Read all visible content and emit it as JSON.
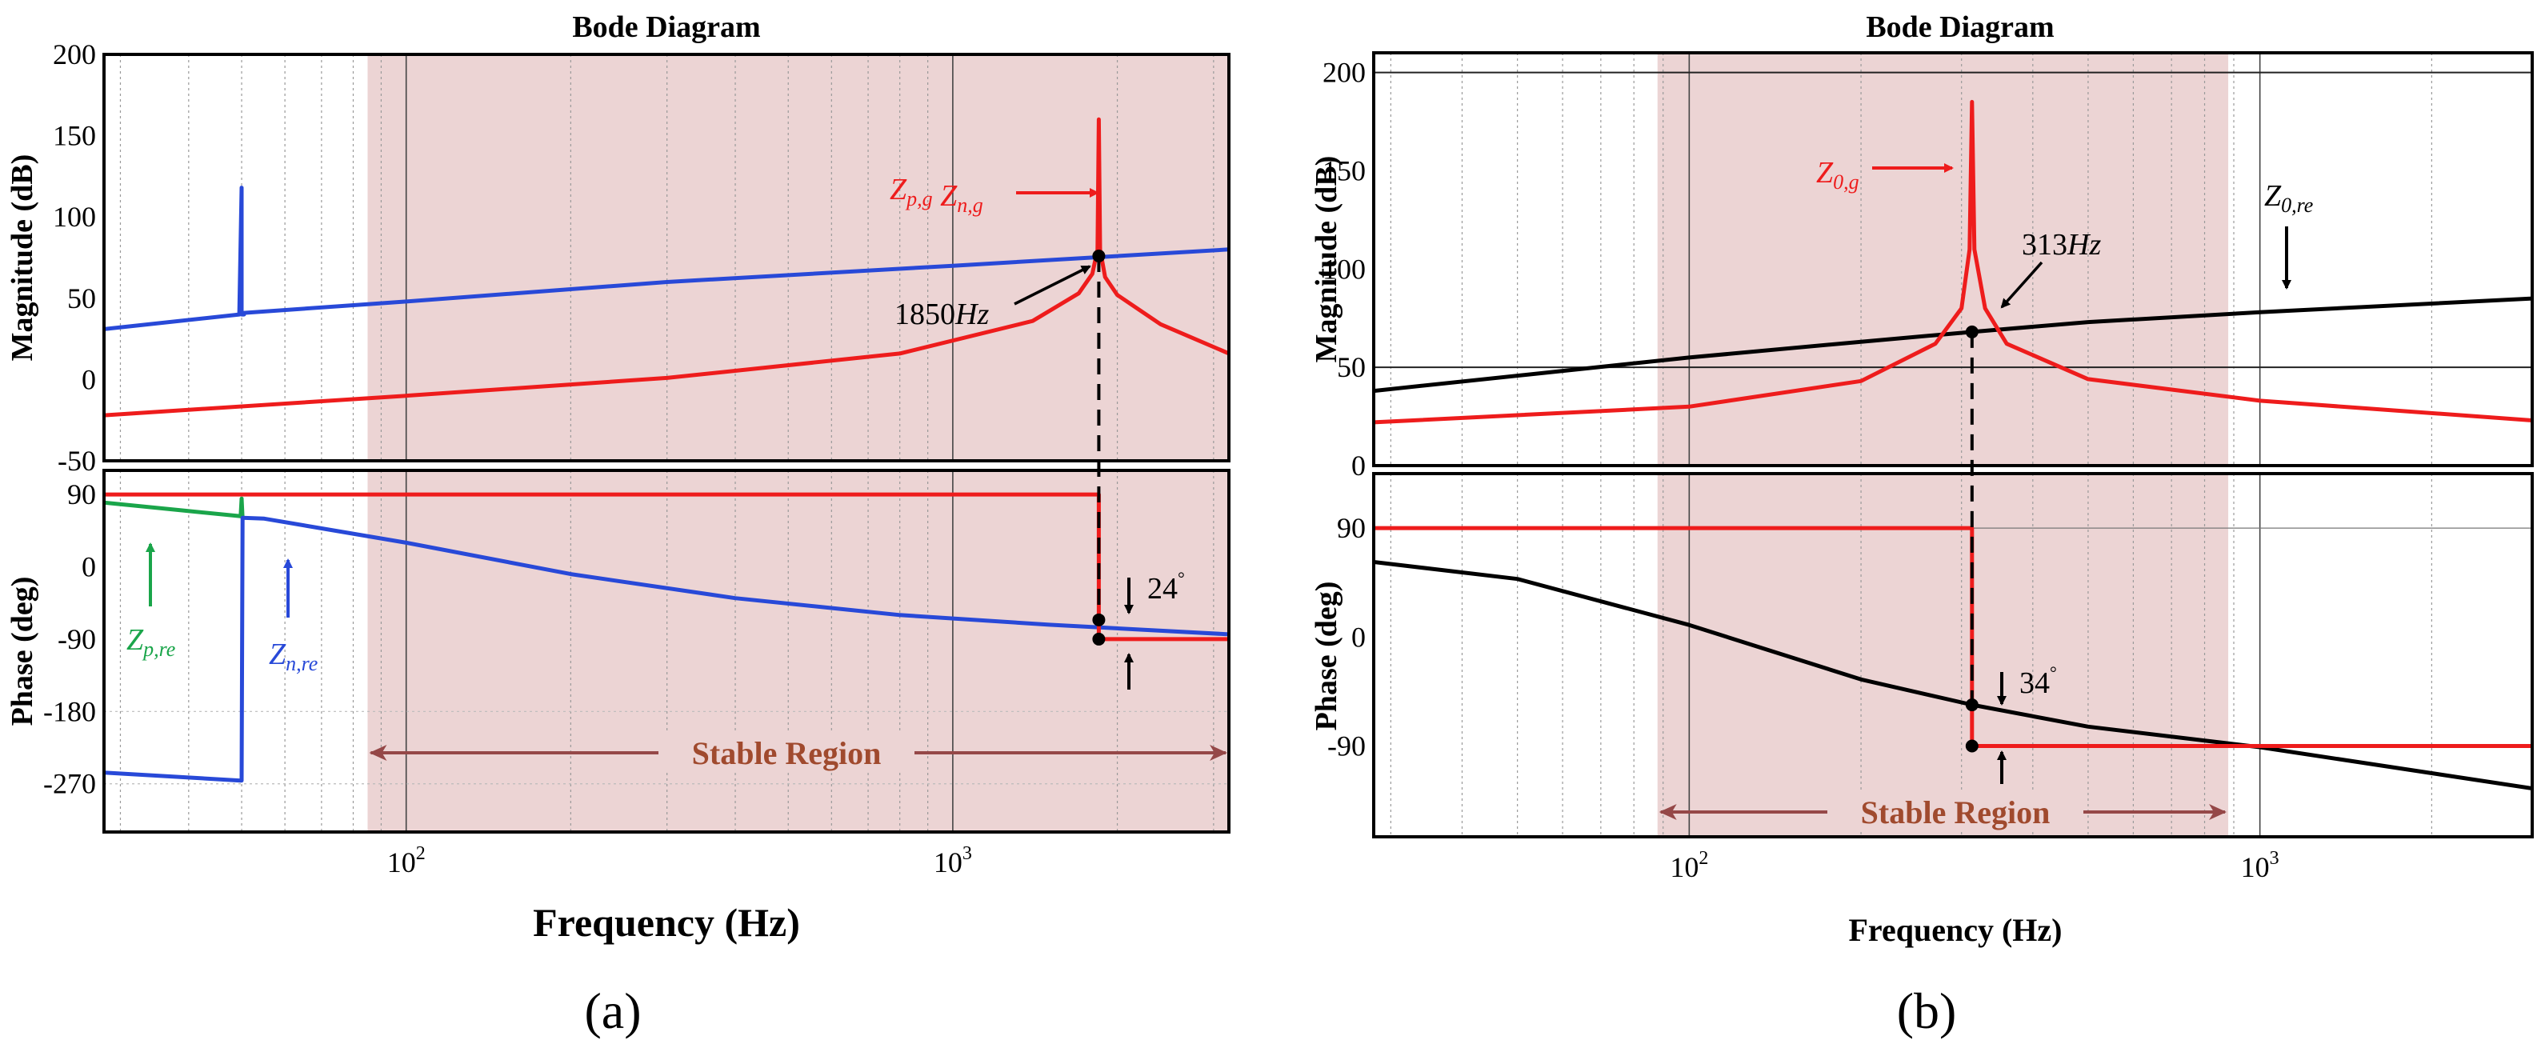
{
  "colors": {
    "red": "#ee1c1c",
    "blue": "#2849d8",
    "green": "#1aa54a",
    "black": "#000000",
    "shade": "#ecd4d4",
    "stable": "#a04a2e",
    "region_arrow": "#954848"
  },
  "chart_data": [
    {
      "id": "a",
      "type": "line",
      "title": "Bode Diagram",
      "xlabel": "Frequency  (Hz)",
      "xscale": "log",
      "xlim": [
        28,
        3200
      ],
      "x_ticks": [
        {
          "value": 100,
          "base": "10",
          "exp": "2"
        },
        {
          "value": 1000,
          "base": "10",
          "exp": "3"
        }
      ],
      "panel_label": "(a)",
      "stable_region": {
        "label": "Stable Region",
        "x_range": [
          85,
          3200
        ]
      },
      "magnitude": {
        "ylabel": "Magnitude (dB)",
        "ylim": [
          -50,
          200
        ],
        "ticks": [
          "200",
          "150",
          "100",
          "50",
          "0",
          "-50"
        ],
        "tick_values": [
          200,
          150,
          100,
          50,
          0,
          -50
        ],
        "series": [
          {
            "name": "Z_n,re",
            "color": "blue",
            "x": [
              28,
              49.5,
              49.5,
              50,
              50,
              50.5,
              50.5,
              100,
              300,
              1000,
              3200
            ],
            "y": [
              31,
              40,
              40,
              118,
              40,
              40,
              41,
              48,
              60,
              70,
              80
            ]
          },
          {
            "name": "Z_p,g Z_n,g",
            "color": "red",
            "x": [
              28,
              100,
              300,
              800,
              1400,
              1700,
              1800,
              1840,
              1850,
              1860,
              1900,
              2000,
              2400,
              3200
            ],
            "y": [
              -22,
              -10,
              1,
              16,
              36,
              53,
              65,
              80,
              160,
              80,
              63,
              52,
              34,
              16
            ]
          }
        ],
        "annotations": [
          {
            "type": "label",
            "parts": [
              {
                "t": "Z",
                "i": true
              },
              {
                "t": "p,g",
                "sub": true,
                "i": true
              },
              {
                "t": "  "
              },
              {
                "t": "Z",
                "i": true
              },
              {
                "t": "n,g",
                "sub": true,
                "i": true
              }
            ],
            "color": "red"
          },
          {
            "type": "label",
            "parts": [
              {
                "t": "1850"
              },
              {
                "t": "Hz",
                "i": true
              }
            ],
            "color": "black"
          }
        ]
      },
      "phase": {
        "ylabel": "Phase (deg)",
        "ylim": [
          -330,
          120
        ],
        "ticks": [
          "90",
          "0",
          "-90",
          "-180",
          "-270"
        ],
        "tick_values": [
          90,
          0,
          -90,
          -180,
          -270
        ],
        "series": [
          {
            "name": "Z_p,re",
            "color": "green",
            "x": [
              28,
              49.8,
              50,
              50.2
            ],
            "y": [
              80,
              63,
              85,
              60
            ]
          },
          {
            "name": "Z_n,re",
            "color": "blue",
            "x": [
              28,
              49.8,
              50,
              50.2,
              55,
              100,
              200,
              400,
              800,
              1500,
              3200
            ],
            "y": [
              -256,
              -266,
              -266,
              61,
              60,
              30,
              -9,
              -39,
              -60,
              -72,
              -84
            ]
          },
          {
            "name": "Z_p,g Z_n,g",
            "color": "red",
            "x": [
              28,
              1849,
              1850,
              1850,
              1851,
              3200
            ],
            "y": [
              90,
              90,
              90,
              -90,
              -90,
              -90
            ]
          }
        ],
        "annotations": [
          {
            "type": "label",
            "parts": [
              {
                "t": "24"
              },
              {
                "t": "°",
                "sup": true
              }
            ],
            "color": "black"
          },
          {
            "type": "label",
            "parts": [
              {
                "t": "Z",
                "i": true
              },
              {
                "t": "p,re",
                "sub": true,
                "i": true
              }
            ],
            "color": "green"
          },
          {
            "type": "label",
            "parts": [
              {
                "t": "Z",
                "i": true
              },
              {
                "t": "n,re",
                "sub": true,
                "i": true
              }
            ],
            "color": "blue"
          }
        ]
      }
    },
    {
      "id": "b",
      "type": "line",
      "title": "Bode Diagram",
      "xlabel": "Frequency  (Hz)",
      "xscale": "log",
      "xlim": [
        28,
        3000
      ],
      "x_ticks": [
        {
          "value": 100,
          "base": "10",
          "exp": "2"
        },
        {
          "value": 1000,
          "base": "10",
          "exp": "3"
        }
      ],
      "panel_label": "(b)",
      "stable_region": {
        "label": "Stable Region",
        "x_range": [
          88,
          880
        ]
      },
      "magnitude": {
        "ylabel": "Magnitude (dB)",
        "ylim": [
          0,
          210
        ],
        "ticks": [
          "200",
          "150",
          "100",
          "50",
          "0"
        ],
        "tick_values": [
          200,
          150,
          100,
          50,
          0
        ],
        "series": [
          {
            "name": "Z_0,re",
            "color": "black",
            "x": [
              28,
              100,
              200,
              313,
              500,
              1000,
              3000
            ],
            "y": [
              38,
              55,
              63,
              68,
              73,
              78,
              85
            ]
          },
          {
            "name": "Z_0,g",
            "color": "red",
            "x": [
              28,
              100,
              200,
              270,
              300,
              310,
              313,
              316,
              330,
              360,
              500,
              1000,
              3000
            ],
            "y": [
              22,
              30,
              43,
              62,
              80,
              110,
              185,
              110,
              80,
              62,
              44,
              33,
              23
            ]
          }
        ],
        "annotations": [
          {
            "type": "label",
            "parts": [
              {
                "t": "Z",
                "i": true
              },
              {
                "t": "0,g",
                "sub": true,
                "i": true
              }
            ],
            "color": "red"
          },
          {
            "type": "label",
            "parts": [
              {
                "t": "313"
              },
              {
                "t": "Hz",
                "i": true
              }
            ],
            "color": "black"
          },
          {
            "type": "label",
            "parts": [
              {
                "t": "Z",
                "i": true
              },
              {
                "t": "0,re",
                "sub": true,
                "i": true
              }
            ],
            "color": "black"
          }
        ]
      },
      "phase": {
        "ylabel": "Phase (deg)",
        "ylim": [
          -165,
          135
        ],
        "ticks": [
          "90",
          "0",
          "-90"
        ],
        "tick_values": [
          90,
          0,
          -90
        ],
        "series": [
          {
            "name": "Z_0,re",
            "color": "black",
            "x": [
              28,
              50,
              100,
              200,
              313,
              500,
              1000,
              3000
            ],
            "y": [
              62,
              48,
              10,
              -35,
              -56,
              -74,
              -91,
              -125
            ]
          },
          {
            "name": "Z_0,g",
            "color": "red",
            "x": [
              28,
              312,
              313,
              313,
              314,
              3000
            ],
            "y": [
              90,
              90,
              90,
              -90,
              -90,
              -90
            ]
          }
        ],
        "annotations": [
          {
            "type": "label",
            "parts": [
              {
                "t": "34"
              },
              {
                "t": "°",
                "sup": true
              }
            ],
            "color": "black"
          }
        ]
      }
    }
  ]
}
